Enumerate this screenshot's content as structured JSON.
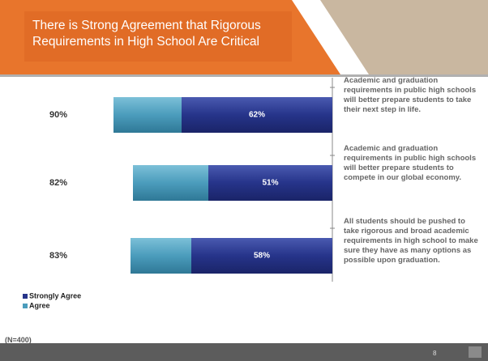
{
  "chart_data": {
    "type": "stacked-barh",
    "title": "There is Strong Agreement that Rigorous Requirements in High School Are Critical",
    "categories": [
      "Academic and graduation requirements in public high schools will better prepare students to take their next step in life.",
      "Academic and graduation requirements in public high schools will better prepare students to compete in our global economy.",
      "All students should be pushed to take rigorous and broad academic requirements in high school to make sure they have as many options as possible upon graduation."
    ],
    "series": [
      {
        "name": "Strongly Agree",
        "color": "#26348a",
        "values": [
          62,
          51,
          58
        ],
        "value_labels": [
          "62%",
          "51%",
          "58%"
        ]
      },
      {
        "name": "Agree",
        "color": "#4b9cbc",
        "values": [
          28,
          31,
          25
        ]
      }
    ],
    "totals": [
      90,
      82,
      83
    ],
    "total_labels": [
      "90%",
      "82%",
      "83%"
    ],
    "xlim": [
      0,
      100
    ],
    "note": "(N=400)",
    "page_number": "8"
  }
}
